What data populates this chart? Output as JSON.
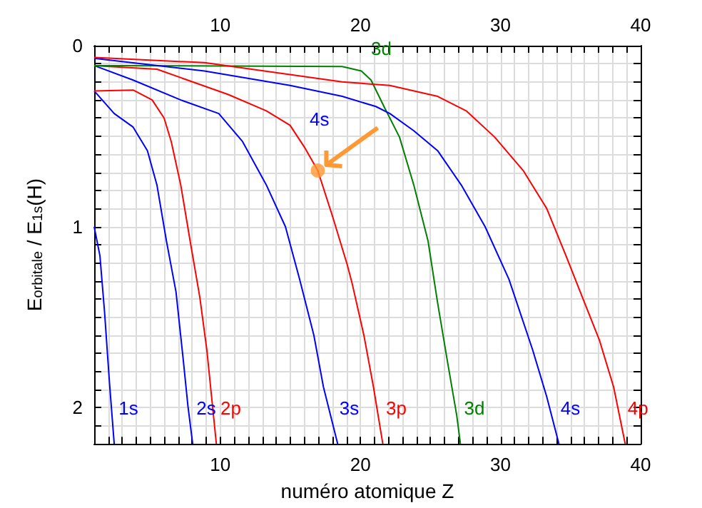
{
  "chart_data": {
    "type": "line",
    "xlabel": "numéro atomique Z",
    "ylabel": "E$_{orbitale}$ / E$_{1s}$(H)",
    "xlim": [
      1,
      40
    ],
    "ylim": [
      2.2,
      0
    ],
    "x2lim": [
      1,
      40
    ],
    "xticks": [
      {
        "value": 1,
        "label": null
      },
      {
        "value": 2,
        "label": null
      },
      {
        "value": 3,
        "label": null
      },
      {
        "value": 4,
        "label": null
      },
      {
        "value": 5,
        "label": null
      },
      {
        "value": 6,
        "label": null
      },
      {
        "value": 7,
        "label": null
      },
      {
        "value": 8,
        "label": null
      },
      {
        "value": 9,
        "label": null
      },
      10,
      {
        "value": 11,
        "label": null
      },
      {
        "value": 12,
        "label": null
      },
      {
        "value": 13,
        "label": null
      },
      {
        "value": 14,
        "label": null
      },
      {
        "value": 15,
        "label": null
      },
      {
        "value": 16,
        "label": null
      },
      {
        "value": 17,
        "label": null
      },
      {
        "value": 18,
        "label": null
      },
      {
        "value": 19,
        "label": null
      },
      20,
      {
        "value": 21,
        "label": null
      },
      {
        "value": 22,
        "label": null
      },
      {
        "value": 23,
        "label": null
      },
      {
        "value": 24,
        "label": null
      },
      {
        "value": 25,
        "label": null
      },
      {
        "value": 26,
        "label": null
      },
      {
        "value": 27,
        "label": null
      },
      {
        "value": 28,
        "label": null
      },
      {
        "value": 29,
        "label": null
      },
      30,
      {
        "value": 31,
        "label": null
      },
      {
        "value": 32,
        "label": null
      },
      {
        "value": 33,
        "label": null
      },
      {
        "value": 34,
        "label": null
      },
      {
        "value": 35,
        "label": null
      },
      {
        "value": 36,
        "label": null
      },
      {
        "value": 37,
        "label": null
      },
      {
        "value": 38,
        "label": null
      },
      {
        "value": 39,
        "label": null
      },
      40
    ],
    "x2ticks": [
      {
        "value": 1,
        "label": null
      },
      {
        "value": 2,
        "label": null
      },
      {
        "value": 3,
        "label": null
      },
      {
        "value": 4,
        "label": null
      },
      {
        "value": 5,
        "label": null
      },
      {
        "value": 6,
        "label": null
      },
      {
        "value": 7,
        "label": null
      },
      {
        "value": 8,
        "label": null
      },
      {
        "value": 9,
        "label": null
      },
      10,
      {
        "value": 11,
        "label": null
      },
      {
        "value": 12,
        "label": null
      },
      {
        "value": 13,
        "label": null
      },
      {
        "value": 14,
        "label": null
      },
      {
        "value": 15,
        "label": null
      },
      {
        "value": 16,
        "label": null
      },
      {
        "value": 17,
        "label": null
      },
      {
        "value": 18,
        "label": null
      },
      {
        "value": 19,
        "label": null
      },
      20,
      {
        "value": 21,
        "label": null
      },
      {
        "value": 22,
        "label": null
      },
      {
        "value": 23,
        "label": null
      },
      {
        "value": 24,
        "label": null
      },
      {
        "value": 25,
        "label": null
      },
      {
        "value": 26,
        "label": null
      },
      {
        "value": 27,
        "label": null
      },
      {
        "value": 28,
        "label": null
      },
      {
        "value": 29,
        "label": null
      },
      30,
      {
        "value": 31,
        "label": null
      },
      {
        "value": 32,
        "label": null
      },
      {
        "value": 33,
        "label": null
      },
      {
        "value": 34,
        "label": null
      },
      {
        "value": 35,
        "label": null
      },
      {
        "value": 36,
        "label": null
      },
      {
        "value": 37,
        "label": null
      },
      {
        "value": 38,
        "label": null
      },
      {
        "value": 39,
        "label": null
      },
      40
    ],
    "yticks": [
      0,
      {
        "value": 0.1,
        "label": null
      },
      {
        "value": 0.2,
        "label": null
      },
      {
        "value": 0.3,
        "label": null
      },
      {
        "value": 0.4,
        "label": null
      },
      {
        "value": 0.5,
        "label": null
      },
      {
        "value": 0.6,
        "label": null
      },
      {
        "value": 0.7,
        "label": null
      },
      {
        "value": 0.8,
        "label": null
      },
      {
        "value": 0.9,
        "label": null
      },
      1,
      {
        "value": 1.1,
        "label": null
      },
      {
        "value": 1.2,
        "label": null
      },
      {
        "value": 1.3,
        "label": null
      },
      {
        "value": 1.4,
        "label": null
      },
      {
        "value": 1.5,
        "label": null
      },
      {
        "value": 1.6,
        "label": null
      },
      {
        "value": 1.7,
        "label": null
      },
      {
        "value": 1.8,
        "label": null
      },
      {
        "value": 1.9,
        "label": null
      },
      2,
      {
        "value": 2.1,
        "label": null
      },
      {
        "value": 2.2,
        "label": null
      }
    ],
    "grid": true,
    "legend": false,
    "marker": "none",
    "line_style": "solid",
    "series": [
      {
        "name": "1s",
        "color": "#0000ff",
        "x": [
          1,
          1.41,
          1.74,
          2.09,
          2.43
        ],
        "values": [
          1.0,
          1.16,
          1.47,
          1.86,
          2.2
        ]
      },
      {
        "name": "2s",
        "color": "#0000ff",
        "x": [
          1,
          2.43,
          3.78,
          4.8,
          5.48,
          6.16,
          6.84,
          7.35,
          7.69,
          8.03
        ],
        "values": [
          0.25,
          0.375,
          0.45,
          0.58,
          0.77,
          1.08,
          1.36,
          1.73,
          1.99,
          2.2
        ]
      },
      {
        "name": "2p",
        "color": "#ff0000",
        "x": [
          1,
          3.78,
          5.14,
          5.99,
          6.5,
          7.18,
          7.85,
          8.54,
          9.04,
          9.38,
          9.72
        ],
        "values": [
          0.25,
          0.245,
          0.3,
          0.4,
          0.53,
          0.77,
          1.08,
          1.39,
          1.68,
          1.94,
          2.2
        ]
      },
      {
        "name": "3s",
        "color": "#0000ff",
        "x": [
          1,
          3.78,
          7.18,
          9.89,
          11.59,
          13.29,
          14.65,
          15.66,
          16.68,
          17.36,
          18.38
        ],
        "values": [
          0.11,
          0.19,
          0.3,
          0.375,
          0.53,
          0.77,
          1.0,
          1.29,
          1.6,
          1.885,
          2.2
        ]
      },
      {
        "name": "3p",
        "color": "#ff0000",
        "x": [
          1,
          5.48,
          10.57,
          13.29,
          14.98,
          16.0,
          16.96,
          18.04,
          19.06,
          19.4,
          20.25,
          20.93,
          21.6
        ],
        "values": [
          0.11,
          0.13,
          0.27,
          0.36,
          0.44,
          0.56,
          0.69,
          0.95,
          1.21,
          1.31,
          1.6,
          1.885,
          2.2
        ]
      },
      {
        "name": "3d",
        "color": "#008000",
        "x": [
          1,
          18.7,
          20.07,
          20.76,
          21.77,
          22.79,
          23.81,
          24.83,
          25.51,
          26.18,
          26.87,
          27.14
        ],
        "values": [
          0.11,
          0.115,
          0.14,
          0.19,
          0.35,
          0.505,
          0.77,
          1.08,
          1.42,
          1.73,
          2.04,
          2.2
        ]
      },
      {
        "name": "4s",
        "color": "#0000ff",
        "x": [
          1,
          8.87,
          14.98,
          18.7,
          21.1,
          22.1,
          23.81,
          25.51,
          27.2,
          28.9,
          30.6,
          32.29,
          33.3,
          34.17
        ],
        "values": [
          0.07,
          0.14,
          0.22,
          0.28,
          0.336,
          0.375,
          0.47,
          0.58,
          0.77,
          1.0,
          1.29,
          1.68,
          1.94,
          2.2
        ]
      },
      {
        "name": "4p",
        "color": "#ff0000",
        "x": [
          1,
          8.87,
          18.7,
          22.1,
          25.51,
          27.55,
          29.58,
          31.62,
          33.3,
          34.67,
          35.69,
          37.05,
          38.07,
          38.9
        ],
        "values": [
          0.065,
          0.094,
          0.2,
          0.22,
          0.28,
          0.36,
          0.505,
          0.69,
          0.9,
          1.16,
          1.36,
          1.625,
          1.885,
          2.2
        ]
      },
      {
        "type": "scatter",
        "marker": "circle",
        "color": "#ff9933",
        "x": [
          16.96
        ],
        "values": [
          0.69
        ]
      }
    ],
    "annotations": [
      {
        "text": "3d",
        "x": 20.07,
        "y": 0.14
      },
      {
        "text": "4s",
        "x": 18.7,
        "y": 0.28
      }
    ]
  }
}
